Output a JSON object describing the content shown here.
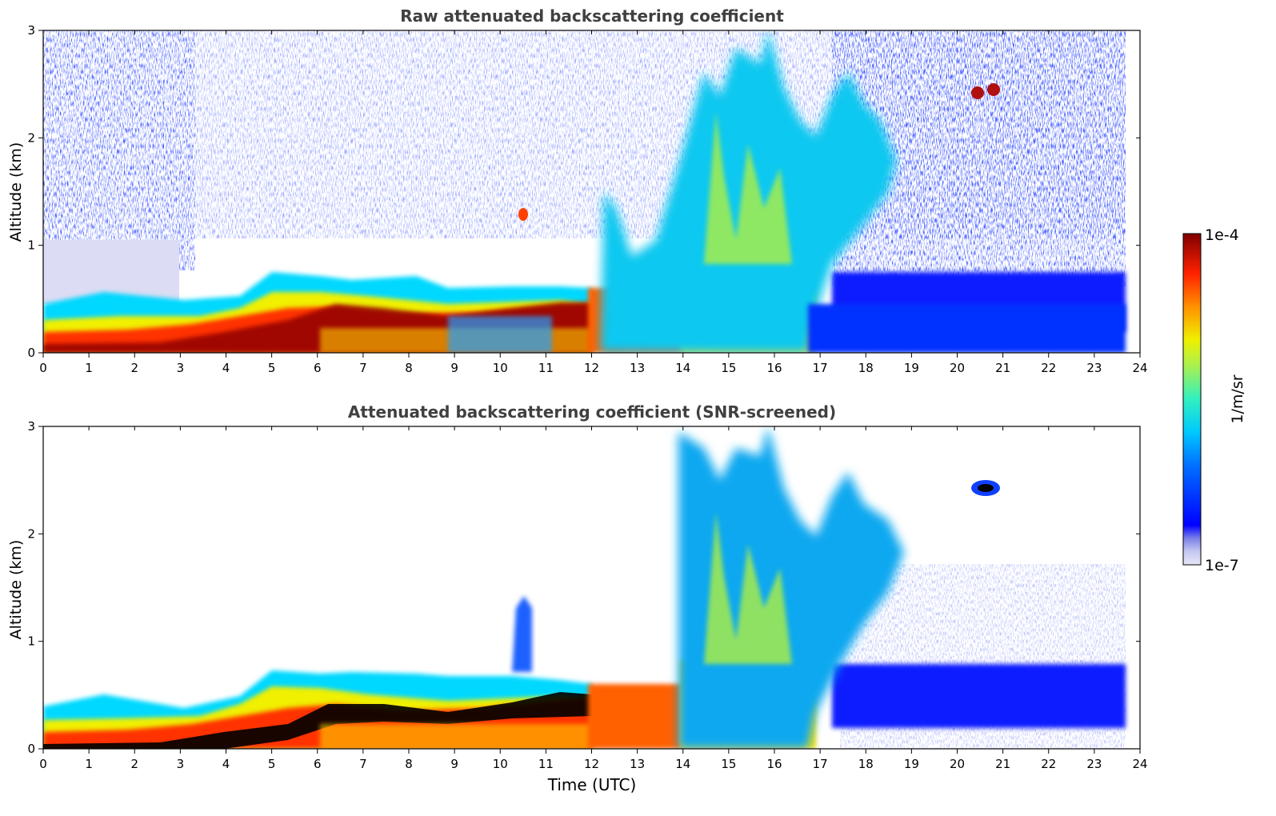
{
  "chart_data": [
    {
      "type": "heatmap",
      "title": "Raw attenuated backscattering coefficient",
      "xlabel": "",
      "ylabel": "Altitude (km)",
      "xlim": [
        0,
        24
      ],
      "ylim": [
        0,
        3
      ],
      "xticks": [
        "0",
        "1",
        "2",
        "3",
        "4",
        "5",
        "6",
        "7",
        "8",
        "9",
        "10",
        "11",
        "12",
        "13",
        "14",
        "15",
        "16",
        "17",
        "18",
        "19",
        "20",
        "21",
        "22",
        "23",
        "24"
      ],
      "yticks": [
        "0",
        "1",
        "2",
        "3"
      ],
      "data_end_hour": 23.65,
      "layers": [
        {
          "feature": "boundary layer aerosol (dense, near surface)",
          "x": [
            0,
            12
          ],
          "y_top_km": [
            0.45,
            0.45,
            0.5,
            0.55,
            0.6,
            0.7,
            0.72,
            0.7,
            0.68,
            0.65,
            0.6,
            0.55,
            0.55
          ],
          "level": "high"
        },
        {
          "feature": "residual/elevated aerosol layer",
          "x": [
            3,
            12
          ],
          "y_km": [
            0.3,
            0.6
          ],
          "level": "very high"
        },
        {
          "feature": "convective clouds",
          "x": [
            12,
            19
          ],
          "y_km": [
            0,
            3
          ],
          "level": "medium-high"
        },
        {
          "feature": "isolated cloud",
          "x": [
            20.3,
            20.9
          ],
          "y_km": [
            2.35,
            2.5
          ],
          "level": "very high"
        },
        {
          "feature": "nighttime aerosol layer",
          "x": [
            17.5,
            23.65
          ],
          "y_km": [
            0,
            0.8
          ],
          "level": "low"
        }
      ]
    },
    {
      "type": "heatmap",
      "title": "Attenuated backscattering coefficient (SNR-screened)",
      "xlabel": "Time (UTC)",
      "ylabel": "Altitude (km)",
      "xlim": [
        0,
        24
      ],
      "ylim": [
        0,
        3
      ],
      "xticks": [
        "0",
        "1",
        "2",
        "3",
        "4",
        "5",
        "6",
        "7",
        "8",
        "9",
        "10",
        "11",
        "12",
        "13",
        "14",
        "15",
        "16",
        "17",
        "18",
        "19",
        "20",
        "21",
        "22",
        "23",
        "24"
      ],
      "yticks": [
        "0",
        "1",
        "2",
        "3"
      ],
      "data_end_hour": 23.65,
      "screened": true
    }
  ],
  "colorbar": {
    "label": "1/m/sr",
    "max_label": "1e-4",
    "min_label": "1e-7",
    "scale": "log",
    "colormap": "jet",
    "range": [
      1e-07,
      0.0001
    ]
  }
}
